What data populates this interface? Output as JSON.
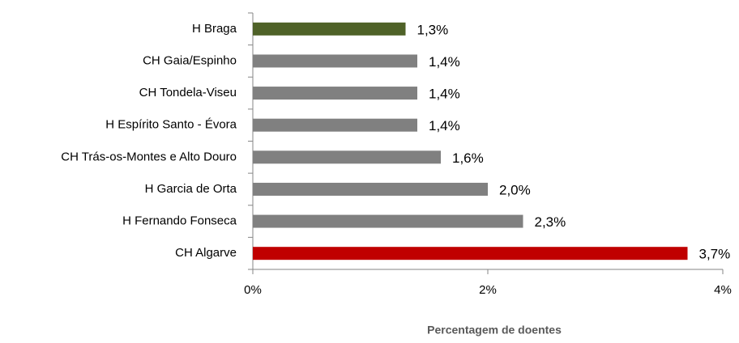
{
  "chart_data": {
    "type": "bar",
    "orientation": "horizontal",
    "xlabel": "Percentagem de doentes",
    "categories": [
      "H Braga",
      "CH Gaia/Espinho",
      "CH Tondela-Viseu",
      "H Espírito Santo - Évora",
      "CH Trás-os-Montes e Alto Douro",
      "H Garcia de Orta",
      "H Fernando Fonseca",
      "CH Algarve"
    ],
    "values": [
      1.3,
      1.4,
      1.4,
      1.4,
      1.6,
      2.0,
      2.3,
      3.7
    ],
    "value_labels": [
      "1,3%",
      "1,4%",
      "1,4%",
      "1,4%",
      "1,6%",
      "2,0%",
      "2,3%",
      "3,7%"
    ],
    "colors": [
      "#4f6228",
      "#808080",
      "#808080",
      "#808080",
      "#808080",
      "#808080",
      "#808080",
      "#c00000"
    ],
    "xlim": [
      0,
      4
    ],
    "xticks": [
      {
        "value": 0,
        "label": "0%"
      },
      {
        "value": 2,
        "label": "2%"
      },
      {
        "value": 4,
        "label": "4%"
      }
    ],
    "grid": false
  }
}
